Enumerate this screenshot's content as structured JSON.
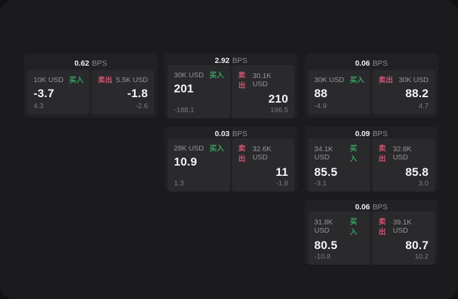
{
  "colors": {
    "buy_green": "#36a35f",
    "sell_red": "#d05570",
    "surface": "#1b1b1d",
    "card_bg": "#212123",
    "panel_bg": "#2a2a2d"
  },
  "cards": [
    {
      "spread": "0.62",
      "unit": "BPS",
      "buy": {
        "volume": "10K USD",
        "side_label": "买入",
        "price": "-3.7",
        "change": "4.3"
      },
      "sell": {
        "side_label": "卖出",
        "volume": "5.5K USD",
        "price": "-1.8",
        "change": "-2.6"
      }
    },
    {
      "spread": "2.92",
      "unit": "BPS",
      "buy": {
        "volume": "30K USD",
        "side_label": "买入",
        "price": "201",
        "change": "-188.1"
      },
      "sell": {
        "side_label": "卖出",
        "volume": "30.1K USD",
        "price": "210",
        "change": "196.5"
      }
    },
    {
      "spread": "0.06",
      "unit": "BPS",
      "buy": {
        "volume": "30K USD",
        "side_label": "买入",
        "price": "88",
        "change": "-4.9"
      },
      "sell": {
        "side_label": "卖出",
        "volume": "30K USD",
        "price": "88.2",
        "change": "4.7"
      }
    },
    {
      "spread": "0.03",
      "unit": "BPS",
      "buy": {
        "volume": "28K USD",
        "side_label": "买入",
        "price": "10.9",
        "change": "1.3"
      },
      "sell": {
        "side_label": "卖出",
        "volume": "32.6K USD",
        "price": "11",
        "change": "-1.8"
      }
    },
    {
      "spread": "0.09",
      "unit": "BPS",
      "buy": {
        "volume": "34.1K USD",
        "side_label": "买入",
        "price": "85.5",
        "change": "-3.1"
      },
      "sell": {
        "side_label": "卖出",
        "volume": "32.8K USD",
        "price": "85.8",
        "change": "3.0"
      }
    },
    {
      "spread": "0.06",
      "unit": "BPS",
      "buy": {
        "volume": "31.8K USD",
        "side_label": "买入",
        "price": "80.5",
        "change": "-10.8"
      },
      "sell": {
        "side_label": "卖出",
        "volume": "39.1K USD",
        "price": "80.7",
        "change": "10.2"
      }
    }
  ]
}
